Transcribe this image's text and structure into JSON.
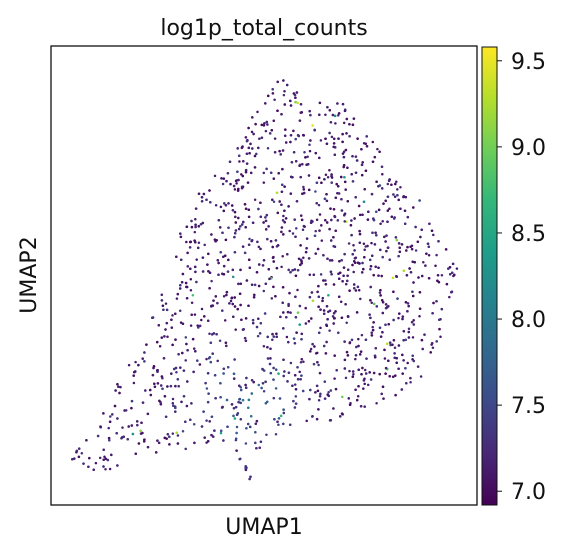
{
  "chart_data": {
    "type": "scatter",
    "title": "log1p_total_counts",
    "xlabel": "UMAP1",
    "ylabel": "UMAP2",
    "xticks": [],
    "yticks": [],
    "colorbar": {
      "colormap": "viridis",
      "min": 6.92,
      "max": 9.58,
      "ticks": [
        7.0,
        7.5,
        8.0,
        8.5,
        9.0,
        9.5
      ],
      "tick_labels": [
        "7.0",
        "7.5",
        "8.0",
        "8.5",
        "9.0",
        "9.5"
      ]
    },
    "point_count": 2400,
    "grid": false
  },
  "colors": {
    "viridis_stops": [
      "#440154",
      "#482777",
      "#3e4989",
      "#31688e",
      "#26828e",
      "#1f9e89",
      "#35b779",
      "#6ece58",
      "#b5de2b",
      "#fde725"
    ],
    "axes_edge": "#111111",
    "background": "#ffffff"
  }
}
